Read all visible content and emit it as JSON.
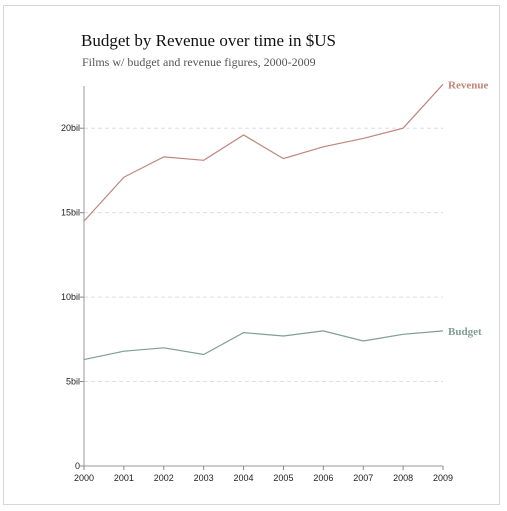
{
  "chart_data": {
    "type": "line",
    "title": "Budget by Revenue over time in $US",
    "subtitle": "Films w/ budget and revenue figures, 2000-2009",
    "xlabel": "",
    "ylabel": "",
    "x": [
      "2000",
      "2001",
      "2002",
      "2003",
      "2004",
      "2005",
      "2006",
      "2007",
      "2008",
      "2009"
    ],
    "ylim": [
      0,
      22.5
    ],
    "y_ticks": [
      0,
      5,
      10,
      15,
      20
    ],
    "y_tick_labels": [
      "0",
      "5bil",
      "10bil",
      "15bil",
      "20bil"
    ],
    "grid": "horizontal dashed",
    "series": [
      {
        "name": "Revenue",
        "color": "#c0857a",
        "values": [
          14.5,
          17.1,
          18.3,
          18.1,
          19.6,
          18.2,
          18.9,
          19.4,
          20.0,
          22.6
        ]
      },
      {
        "name": "Budget",
        "color": "#7f9e94",
        "values": [
          6.3,
          6.8,
          7.0,
          6.6,
          7.9,
          7.7,
          8.0,
          7.4,
          7.8,
          8.0
        ]
      }
    ],
    "legend": "inline labels at line ends"
  }
}
